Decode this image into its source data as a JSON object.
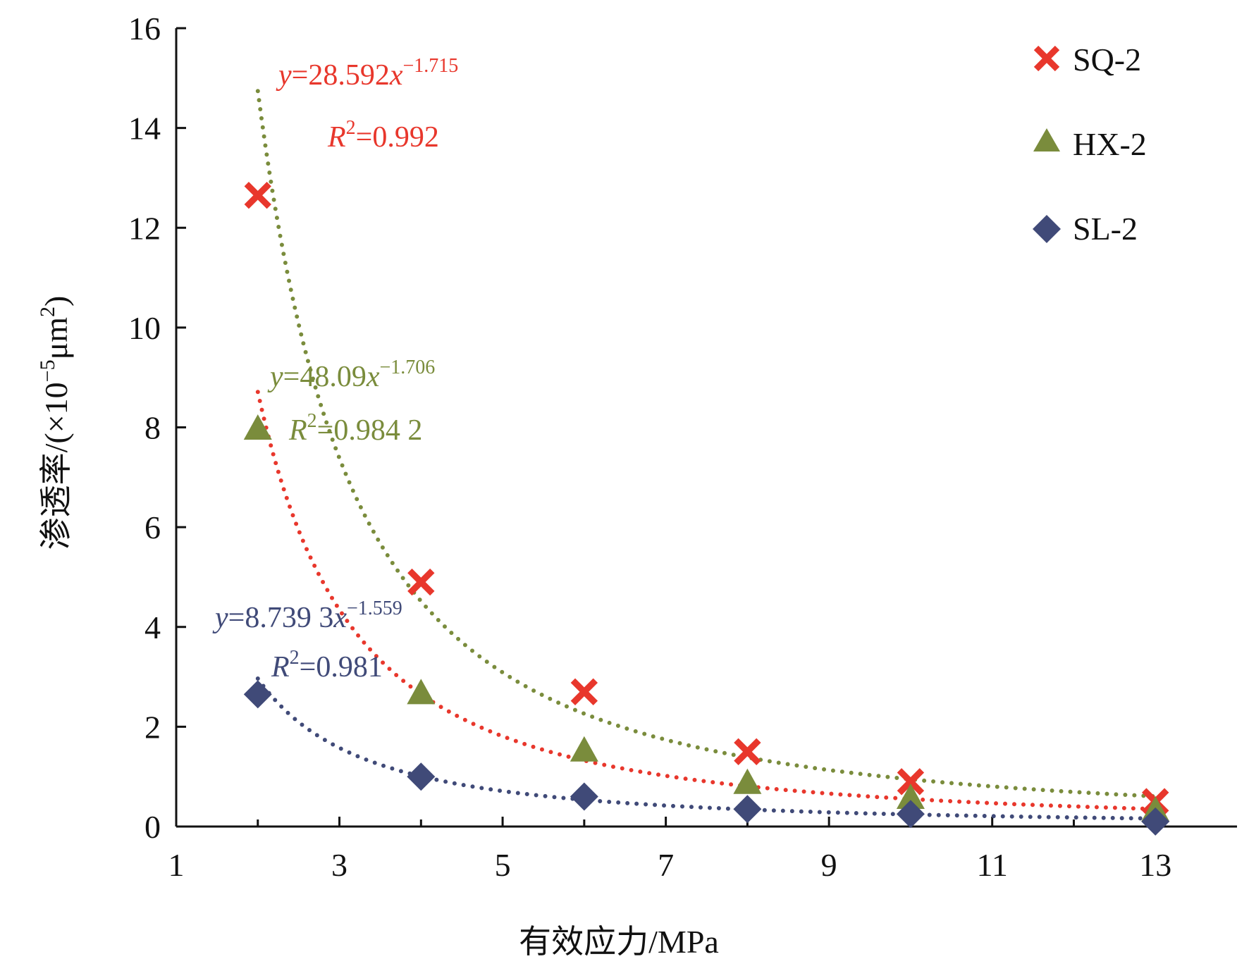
{
  "chart_data": {
    "type": "scatter",
    "xlabel": "有效应力/MPa",
    "ylabel_main": "渗透率/(×10",
    "ylabel_sup": "−5",
    "ylabel_tail": "μm",
    "ylabel_sup2": "2",
    "ylabel_close": ")",
    "xlim": [
      1,
      14
    ],
    "ylim": [
      0,
      16
    ],
    "xticks": [
      1,
      3,
      5,
      7,
      9,
      11,
      13
    ],
    "yticks": [
      0,
      2,
      4,
      6,
      8,
      10,
      12,
      14,
      16
    ],
    "grid": false,
    "legend_position": "top-right",
    "series": [
      {
        "name": "SQ-2",
        "marker": "x",
        "color": "#e8372c",
        "x": [
          2,
          4,
          6,
          8,
          10,
          13
        ],
        "y": [
          12.65,
          4.9,
          2.7,
          1.5,
          0.9,
          0.5
        ],
        "fit": {
          "a": 28.592,
          "b": -1.715
        },
        "eq_prefix": "y",
        "eq_mid": "=28.592",
        "eq_x": "x",
        "eq_exp": "−1.715",
        "r2_sym": "R",
        "r2_sup": "2",
        "r2_val": "=0.992"
      },
      {
        "name": "HX-2",
        "marker": "triangle",
        "color": "#7a8c3c",
        "x": [
          2,
          4,
          6,
          8,
          10,
          13
        ],
        "y": [
          7.95,
          2.65,
          1.5,
          0.85,
          0.55,
          0.3
        ],
        "fit": {
          "a": 48.09,
          "b": -1.706
        },
        "eq_prefix": "y",
        "eq_mid": "=48.09",
        "eq_x": "x",
        "eq_exp": "−1.706",
        "r2_sym": "R",
        "r2_sup": "2",
        "r2_val": "=0.984 2"
      },
      {
        "name": "SL-2",
        "marker": "diamond",
        "color": "#404a78",
        "x": [
          2,
          4,
          6,
          8,
          10,
          13
        ],
        "y": [
          2.65,
          1.0,
          0.6,
          0.35,
          0.25,
          0.1
        ],
        "fit": {
          "a": 8.7393,
          "b": -1.559
        },
        "eq_prefix": "y",
        "eq_mid": "=8.739 3",
        "eq_x": "x",
        "eq_exp": "−1.559",
        "r2_sym": "R",
        "r2_sup": "2",
        "r2_val": "=0.981"
      }
    ]
  }
}
